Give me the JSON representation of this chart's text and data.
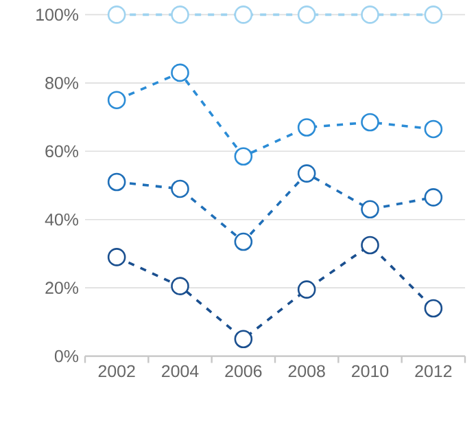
{
  "chart_data": {
    "type": "line",
    "categories": [
      "2002",
      "2004",
      "2006",
      "2008",
      "2010",
      "2012"
    ],
    "series": [
      {
        "color": "#9fd3f0",
        "values": [
          100,
          100,
          100,
          100,
          100,
          100
        ]
      },
      {
        "color": "#2b8cd6",
        "values": [
          75,
          83,
          58.5,
          67,
          68.5,
          66.5
        ]
      },
      {
        "color": "#1f6fb8",
        "values": [
          51,
          49,
          33.5,
          53.5,
          43,
          46.5
        ]
      },
      {
        "color": "#1a4f8f",
        "values": [
          29,
          20.5,
          5,
          19.5,
          32.5,
          14
        ]
      }
    ],
    "ylim": [
      0,
      100
    ],
    "yticks": [
      {
        "value": 0,
        "label": "0%"
      },
      {
        "value": 20,
        "label": "20%"
      },
      {
        "value": 40,
        "label": "40%"
      },
      {
        "value": 60,
        "label": "60%"
      },
      {
        "value": 80,
        "label": "80%"
      },
      {
        "value": 100,
        "label": "100%"
      }
    ],
    "grid": "y",
    "marker": "circle",
    "line_style": "dashed"
  }
}
